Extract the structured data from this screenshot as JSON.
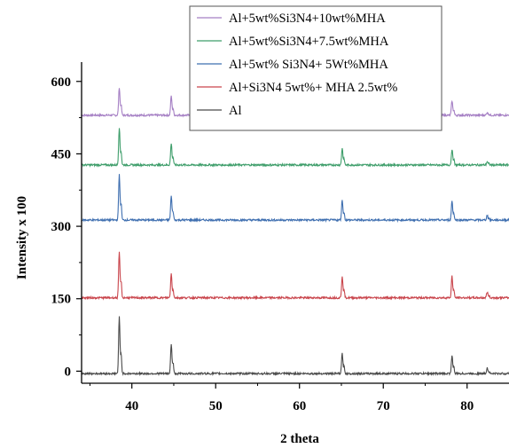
{
  "chart_data": {
    "type": "line",
    "xlabel": "2 theta",
    "ylabel": "Intensity x 100",
    "xlim": [
      34,
      85
    ],
    "ylim": [
      -25,
      640
    ],
    "xticks": [
      40,
      50,
      60,
      70,
      80
    ],
    "yticks": [
      0,
      150,
      300,
      450,
      600
    ],
    "grid": false,
    "legend_position": "top-right",
    "peaks_2theta": [
      38.5,
      44.7,
      65.1,
      78.2,
      82.4
    ],
    "series": [
      {
        "name": "Al+5wt%Si3N4+10wt%MHA",
        "color": "#a57fc4",
        "baseline": 530,
        "peak_heights": [
          58,
          40,
          28,
          30,
          6
        ]
      },
      {
        "name": "Al+5wt%Si3N4+7.5wt%MHA",
        "color": "#3f9e6b",
        "baseline": 427,
        "peak_heights": [
          78,
          45,
          35,
          33,
          7
        ]
      },
      {
        "name": "Al+5wt% Si3N4+ 5Wt%MHA",
        "color": "#3f6fb0",
        "baseline": 313,
        "peak_heights": [
          95,
          50,
          42,
          40,
          10
        ]
      },
      {
        "name": "Al+Si3N4 5wt%+ MHA 2.5wt%",
        "color": "#c9454c",
        "baseline": 152,
        "peak_heights": [
          95,
          50,
          45,
          45,
          12
        ]
      },
      {
        "name": "Al",
        "color": "#4a4a4a",
        "baseline": -5,
        "peak_heights": [
          118,
          62,
          42,
          38,
          12
        ]
      }
    ]
  }
}
